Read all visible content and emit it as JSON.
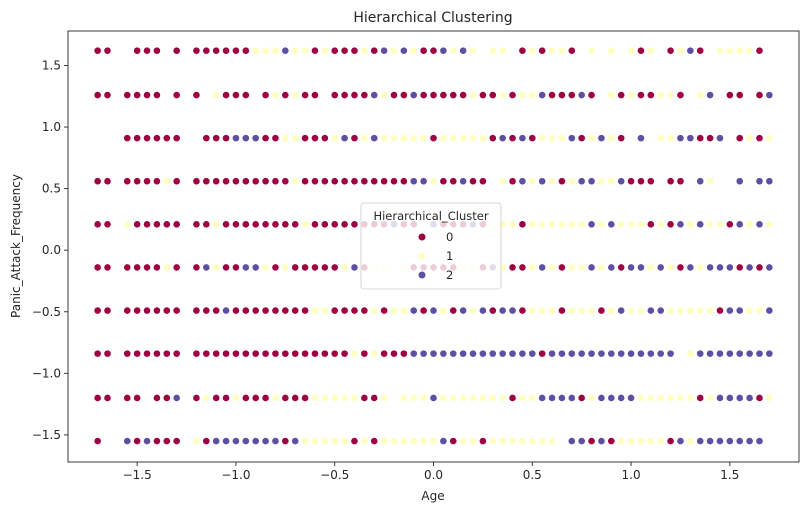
{
  "chart_data": {
    "type": "scatter",
    "title": "Hierarchical Clustering",
    "xlabel": "Age",
    "ylabel": "Panic_Attack_Frequency",
    "xlim": [
      -1.85,
      1.85
    ],
    "ylim": [
      -1.72,
      1.78
    ],
    "xticks": [
      -1.5,
      -1.0,
      -0.5,
      0.0,
      0.5,
      1.0,
      1.5
    ],
    "xtick_labels": [
      "−1.5",
      "−1.0",
      "−0.5",
      "0.0",
      "0.5",
      "1.0",
      "1.5"
    ],
    "yticks": [
      -1.5,
      -1.0,
      -0.5,
      0.0,
      0.5,
      1.0,
      1.5
    ],
    "ytick_labels": [
      "−1.5",
      "−1.0",
      "−0.5",
      "0.0",
      "0.5",
      "1.0",
      "1.5"
    ],
    "grid": false,
    "legend": {
      "title": "Hierarchical_Cluster",
      "placement": "center",
      "entries": [
        {
          "label": "0",
          "color": "#9e0142"
        },
        {
          "label": "1",
          "color": "#ffffbf"
        },
        {
          "label": "2",
          "color": "#5e4fa2"
        }
      ]
    },
    "x_levels": [
      -1.7,
      -1.65,
      -1.55,
      -1.5,
      -1.45,
      -1.4,
      -1.35,
      -1.3,
      -1.2,
      -1.15,
      -1.1,
      -1.05,
      -1.0,
      -0.95,
      -0.9,
      -0.85,
      -0.8,
      -0.75,
      -0.7,
      -0.65,
      -0.6,
      -0.55,
      -0.5,
      -0.45,
      -0.4,
      -0.35,
      -0.3,
      -0.25,
      -0.2,
      -0.15,
      -0.1,
      -0.05,
      0.0,
      0.05,
      0.1,
      0.15,
      0.2,
      0.25,
      0.3,
      0.35,
      0.4,
      0.45,
      0.5,
      0.55,
      0.6,
      0.65,
      0.7,
      0.75,
      0.8,
      0.85,
      0.9,
      0.95,
      1.0,
      1.05,
      1.1,
      1.15,
      1.2,
      1.25,
      1.3,
      1.35,
      1.4,
      1.45,
      1.5,
      1.55,
      1.6,
      1.65,
      1.7
    ],
    "rows": [
      {
        "y": 1.62,
        "clusters": "00.000.000000011121101000102121002121.11.010110.1.1.101.0120.11110"
      },
      {
        "y": 1.26,
        "clusters": "000000.00.1000.010100.000021002000001001011200020.10100110.12.00.02"
      },
      {
        "y": 0.91,
        "clusters": "..000000.0002220011000120121111101111102020111201210.2.1122002.0101"
      },
      {
        "y": 0.56,
        "clusters": "00000010000000000010000000000022100200.1021210122112000.00.21..2.22"
      },
      {
        "y": 0.21,
        "clusters": "0010000000100000000100000000200.20002011101111112121110102121102121"
      },
      {
        "y": -0.14,
        "clusters": "0000001002100221010000012011.10000011021001210112120221210212220202"
      },
      {
        "y": -0.49,
        "clusters": "0000000000020000000011000010112021021202201110111012112211111022112"
      },
      {
        "y": -0.84,
        "clusters": "000000000000000000000000101000222222222222202222222222222.122222222"
      },
      {
        "y": -1.2,
        "clusters": "0000.00201001000100011111001.11121111111011222201222211111101222201"
      },
      {
        "y": -1.55,
        "clusters": "0.2020001022222220211111010111111201101111111.22020111110212222222.2"
      }
    ]
  }
}
